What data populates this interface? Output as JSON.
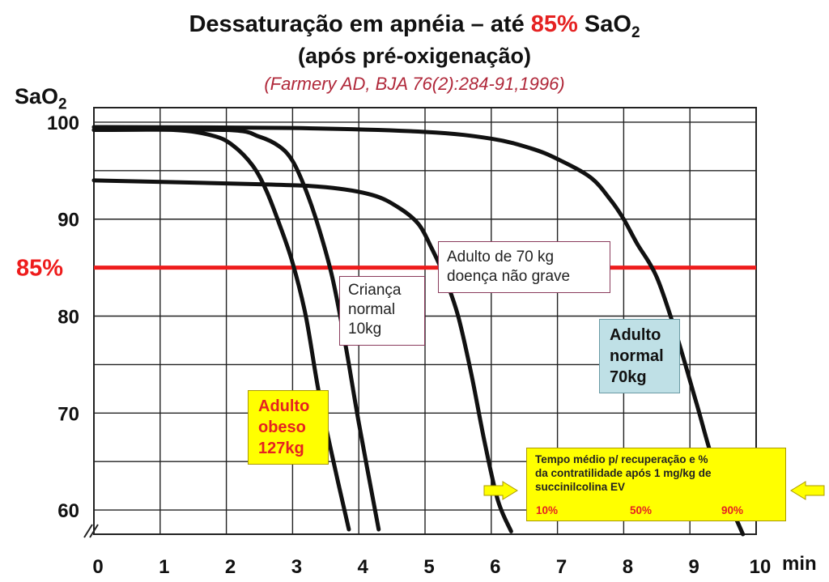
{
  "title": {
    "prefix": "Dessaturação em apnéia – até ",
    "accent": "85%",
    "suffix": " SaO",
    "subscript": "2"
  },
  "subtitle": "(após pré-oxigenação)",
  "citation": "(Farmery AD, BJA 76(2):284-91,1996)",
  "colors": {
    "accent_red": "#e52222",
    "curve": "#111111",
    "grid": "#222222",
    "threshold": "#ee1c1c"
  },
  "chart_data": {
    "type": "line",
    "ylabel": {
      "text": "SaO",
      "subscript": "2"
    },
    "xunit": "min",
    "xlim": [
      0,
      10
    ],
    "ylim": [
      57.5,
      101.5
    ],
    "xticks": [
      "0",
      "1",
      "2",
      "3",
      "4",
      "5",
      "6",
      "7",
      "8",
      "9",
      "10"
    ],
    "yticks": [
      {
        "value": 100,
        "label": "100"
      },
      {
        "value": 90,
        "label": "90"
      },
      {
        "value": 80,
        "label": "80"
      },
      {
        "value": 70,
        "label": "70"
      },
      {
        "value": 60,
        "label": "60"
      }
    ],
    "threshold": {
      "value": 85,
      "label": "85%"
    },
    "grid": true,
    "series": [
      {
        "x": [
          0,
          1.2,
          1.8,
          2.1,
          2.4,
          2.6,
          2.8,
          3.0,
          3.2,
          3.4,
          3.65,
          3.85
        ],
        "y": [
          99.2,
          99.2,
          98.6,
          97.6,
          95.5,
          93.0,
          89.5,
          85.5,
          80.0,
          72.0,
          64.0,
          58.0
        ]
      },
      {
        "x": [
          0,
          2.0,
          2.5,
          2.8,
          3.0,
          3.2,
          3.4,
          3.6,
          3.8,
          4.0,
          4.3
        ],
        "y": [
          99.2,
          99.2,
          98.5,
          97.5,
          96.0,
          93.0,
          89.0,
          84.0,
          77.0,
          69.0,
          58.0
        ]
      },
      {
        "x": [
          0,
          2.5,
          3.5,
          4.2,
          4.6,
          4.9,
          5.1,
          5.3,
          5.5,
          5.7,
          5.9,
          6.1,
          6.3
        ],
        "y": [
          94.0,
          93.6,
          93.3,
          92.5,
          91.2,
          89.5,
          87.0,
          84.0,
          80.0,
          74.0,
          67.0,
          61.0,
          57.8
        ]
      },
      {
        "x": [
          0,
          3.0,
          5.0,
          6.0,
          6.6,
          7.0,
          7.5,
          7.8,
          8.0,
          8.2,
          8.5,
          8.8,
          9.1,
          9.4,
          9.8
        ],
        "y": [
          99.5,
          99.4,
          99.0,
          98.3,
          97.3,
          96.2,
          94.3,
          92.0,
          90.0,
          87.5,
          84.0,
          78.0,
          71.0,
          64.0,
          57.5
        ]
      }
    ]
  },
  "annotations": {
    "adult70": [
      "Adulto de 70 kg",
      "doença não grave"
    ],
    "child": [
      "Criança",
      "normal",
      "10kg"
    ],
    "normal": [
      "Adulto",
      "normal",
      "70kg"
    ],
    "obese": [
      "Adulto",
      "obeso",
      "127kg"
    ],
    "recovery": {
      "lines": [
        "Tempo médio p/ recuperação e %",
        "da contratilidade após 1 mg/kg de",
        "succinilcolina EV"
      ],
      "percents": [
        "10%",
        "50%",
        "90%"
      ]
    }
  }
}
